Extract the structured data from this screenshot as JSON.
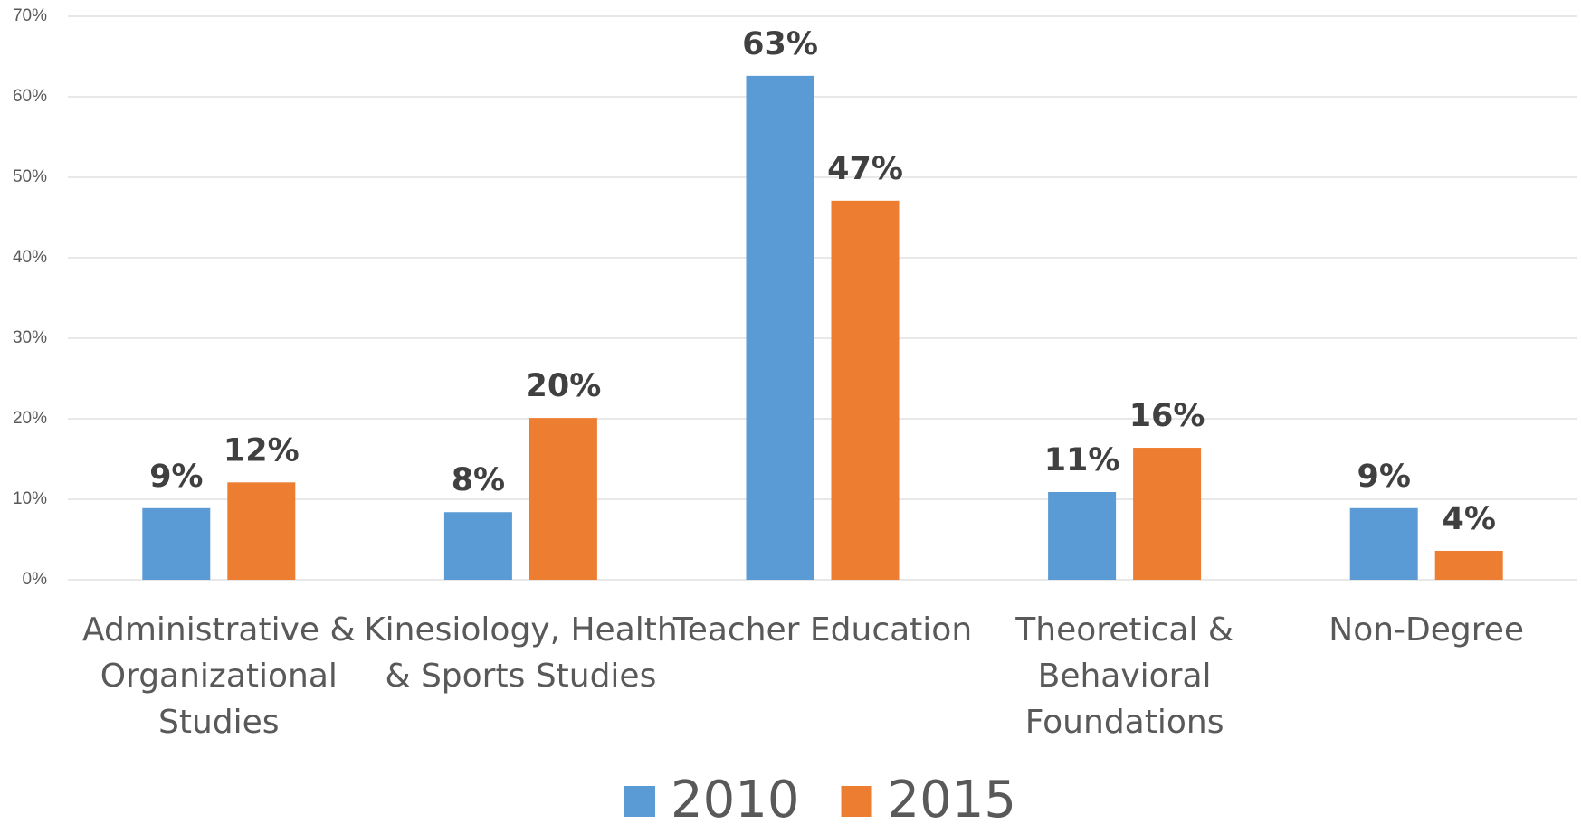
{
  "chart_data": {
    "type": "bar",
    "categories": [
      "Administrative & Organizational Studies",
      "Kinesiology, Health & Sports Studies",
      "Teacher Education",
      "Theoretical & Behavioral Foundations",
      "Non-Degree"
    ],
    "series": [
      {
        "name": "2010",
        "color": "#5b9bd5",
        "values": [
          8.9,
          8.4,
          62.6,
          10.9,
          8.9
        ],
        "value_labels": [
          "9%",
          "8%",
          "63%",
          "11%",
          "9%"
        ]
      },
      {
        "name": "2015",
        "color": "#ed7d31",
        "values": [
          12.1,
          20.1,
          47.1,
          16.4,
          3.6
        ],
        "value_labels": [
          "12%",
          "20%",
          "47%",
          "16%",
          "4%"
        ]
      }
    ],
    "ylim": [
      0,
      70
    ],
    "yticks": [
      {
        "value": 0,
        "label": "0%"
      },
      {
        "value": 10,
        "label": "10%"
      },
      {
        "value": 20,
        "label": "20%"
      },
      {
        "value": 30,
        "label": "30%"
      },
      {
        "value": 40,
        "label": "40%"
      },
      {
        "value": 50,
        "label": "50%"
      },
      {
        "value": 60,
        "label": "60%"
      },
      {
        "value": 70,
        "label": "70%"
      }
    ],
    "grid": true,
    "legend": "bottom"
  }
}
